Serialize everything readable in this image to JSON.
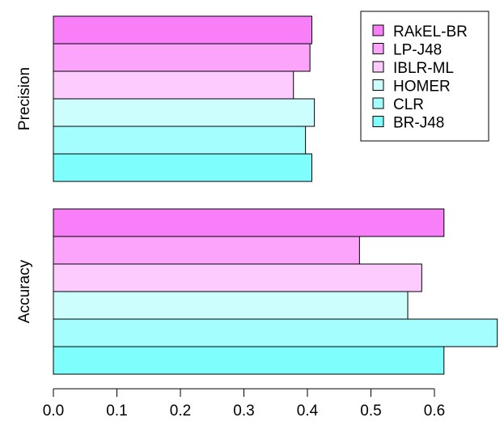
{
  "chart_data": {
    "type": "bar",
    "orientation": "horizontal",
    "groups": [
      "Precision",
      "Accuracy"
    ],
    "series": [
      {
        "name": "RAkEL-BR",
        "color": "#F97FF8",
        "values": [
          0.407,
          0.615
        ]
      },
      {
        "name": "LP-J48",
        "color": "#FCA4FC",
        "values": [
          0.404,
          0.482
        ]
      },
      {
        "name": "IBLR-ML",
        "color": "#FECBFE",
        "values": [
          0.378,
          0.58
        ]
      },
      {
        "name": "HOMER",
        "color": "#CCFEFE",
        "values": [
          0.411,
          0.558
        ]
      },
      {
        "name": "CLR",
        "color": "#A5FEFE",
        "values": [
          0.397,
          0.699
        ]
      },
      {
        "name": "BR-J48",
        "color": "#7FFEFE",
        "values": [
          0.407,
          0.615
        ]
      }
    ],
    "xlim": [
      0.0,
      0.7
    ],
    "xticks": [
      0.0,
      0.1,
      0.2,
      0.3,
      0.4,
      0.5,
      0.6
    ],
    "xtick_labels": [
      "0.0",
      "0.1",
      "0.2",
      "0.3",
      "0.4",
      "0.5",
      "0.6"
    ],
    "grid": false,
    "legend_position": "top-right"
  }
}
